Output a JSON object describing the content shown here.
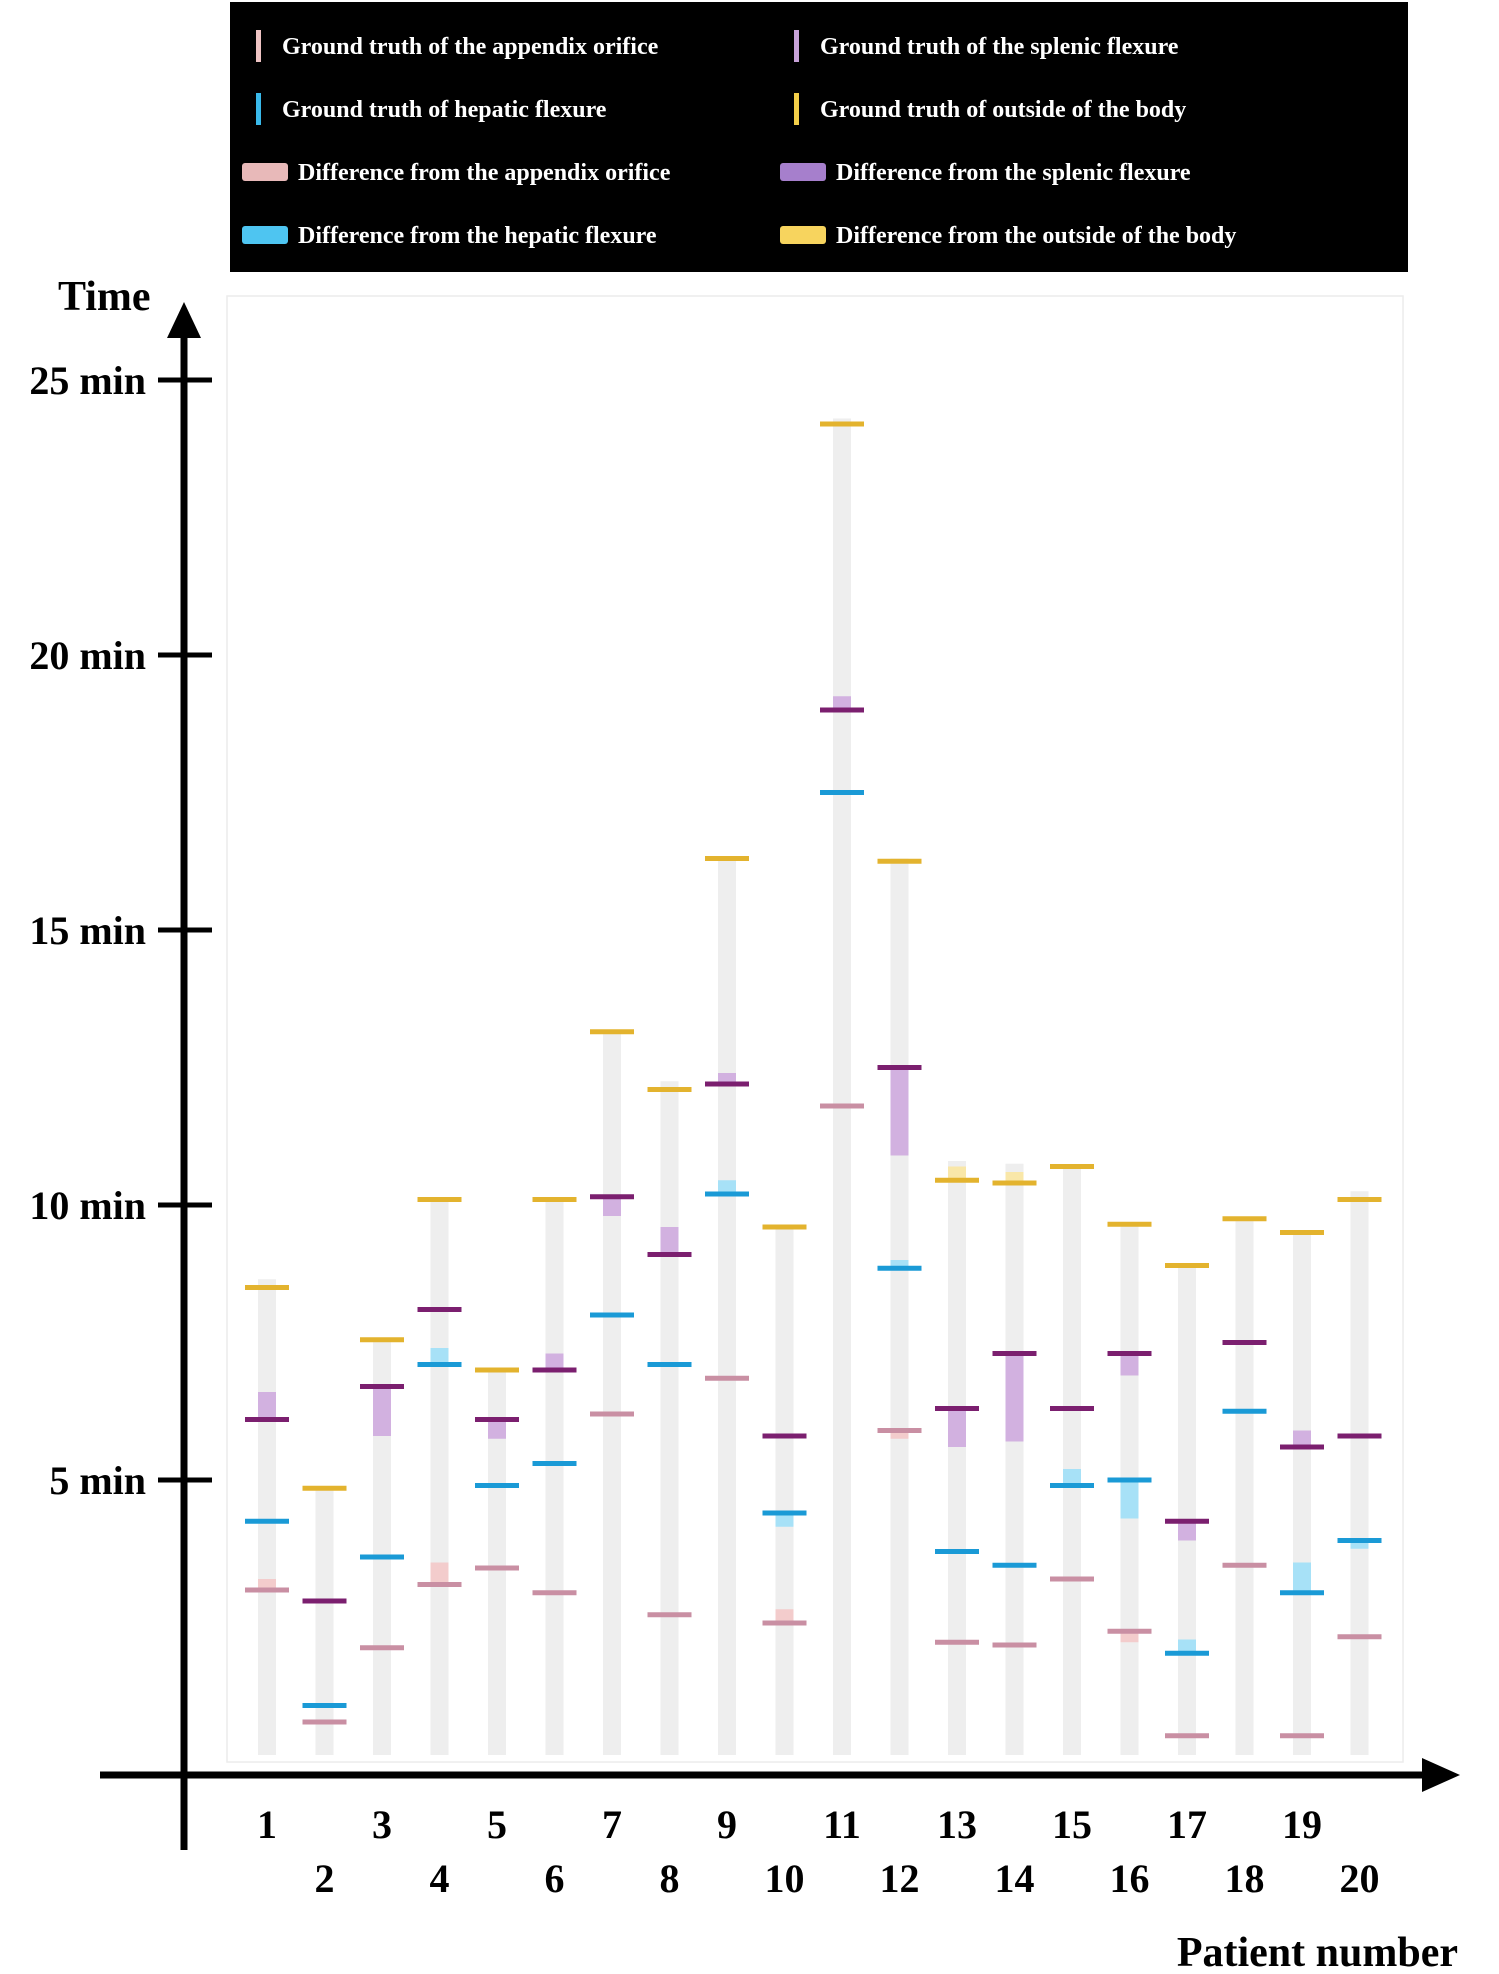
{
  "chart_data": {
    "type": "bar",
    "ylabel": "Time",
    "xlabel": "Patient number",
    "y_tick_labels": [
      "5 min",
      "10 min",
      "15 min",
      "20 min",
      "25 min"
    ],
    "y_ticks": [
      5,
      10,
      15,
      20,
      25
    ],
    "ylim": [
      0,
      26.5
    ],
    "legend": {
      "position": "top",
      "entries": [
        {
          "key": "gt_appendix",
          "label": "Ground truth of the appendix orifice",
          "color": "#eec4c4",
          "style": "thin"
        },
        {
          "key": "gt_splenic",
          "label": "Ground truth of the splenic flexure",
          "color": "#c7a2d8",
          "style": "thin"
        },
        {
          "key": "gt_hepatic",
          "label": "Ground truth of hepatic flexure",
          "color": "#39b9ea",
          "style": "thin"
        },
        {
          "key": "gt_outside",
          "label": "Ground truth of outside of the body",
          "color": "#f3cf49",
          "style": "thin"
        },
        {
          "key": "diff_appendix",
          "label": "Difference from the appendix orifice",
          "color": "#e8b9b9",
          "style": "thick"
        },
        {
          "key": "diff_splenic",
          "label": "Difference from the splenic flexure",
          "color": "#a67fcc",
          "style": "thick"
        },
        {
          "key": "diff_hepatic",
          "label": "Difference from the hepatic flexure",
          "color": "#4ec5f1",
          "style": "thick"
        },
        {
          "key": "diff_outside",
          "label": "Difference from the outside of the body",
          "color": "#f7d45e",
          "style": "thick"
        }
      ]
    },
    "colors": {
      "appendix_marker": "#c98fa3",
      "appendix_diff": "#f3cccc",
      "splenic_marker": "#7b1f6f",
      "splenic_diff": "#d2b1e0",
      "hepatic_marker": "#1a9ad6",
      "hepatic_diff": "#a7e1f7",
      "outside_marker": "#e3b32e",
      "outside_diff": "#f9e7a8",
      "bar": "#eeeeee"
    },
    "categories": [
      "1",
      "2",
      "3",
      "4",
      "5",
      "6",
      "7",
      "8",
      "9",
      "10",
      "11",
      "12",
      "13",
      "14",
      "15",
      "16",
      "17",
      "18",
      "19",
      "20"
    ],
    "patients": [
      {
        "patient": "1",
        "total": 8.65,
        "appendix": 3.0,
        "appendix_pred": 3.2,
        "hepatic": 4.25,
        "hepatic_pred": 4.25,
        "splenic": 6.1,
        "splenic_pred": 6.6,
        "outside": 8.5,
        "outside_pred": 8.5
      },
      {
        "patient": "2",
        "total": 4.85,
        "appendix": 0.6,
        "appendix_pred": 0.6,
        "hepatic": 0.9,
        "hepatic_pred": 0.9,
        "splenic": 2.8,
        "splenic_pred": 2.8,
        "outside": 4.85,
        "outside_pred": 4.85
      },
      {
        "patient": "3",
        "total": 7.55,
        "appendix": 1.95,
        "appendix_pred": 1.95,
        "hepatic": 3.6,
        "hepatic_pred": 3.6,
        "splenic": 6.7,
        "splenic_pred": 5.8,
        "outside": 7.55,
        "outside_pred": 7.55
      },
      {
        "patient": "4",
        "total": 10.1,
        "appendix": 3.1,
        "appendix_pred": 3.5,
        "hepatic": 7.1,
        "hepatic_pred": 7.4,
        "splenic": 8.1,
        "splenic_pred": 8.1,
        "outside": 10.1,
        "outside_pred": 10.1
      },
      {
        "patient": "5",
        "total": 7.0,
        "appendix": 3.4,
        "appendix_pred": 3.4,
        "hepatic": 4.9,
        "hepatic_pred": 4.9,
        "splenic": 6.1,
        "splenic_pred": 5.75,
        "outside": 7.0,
        "outside_pred": 7.0
      },
      {
        "patient": "6",
        "total": 10.1,
        "appendix": 2.95,
        "appendix_pred": 2.95,
        "hepatic": 5.3,
        "hepatic_pred": 5.3,
        "splenic": 7.0,
        "splenic_pred": 7.3,
        "outside": 10.1,
        "outside_pred": 10.1
      },
      {
        "patient": "7",
        "total": 13.15,
        "appendix": 6.2,
        "appendix_pred": 6.2,
        "hepatic": 8.0,
        "hepatic_pred": 8.0,
        "splenic": 10.15,
        "splenic_pred": 9.8,
        "outside": 13.15,
        "outside_pred": 13.15
      },
      {
        "patient": "8",
        "total": 12.25,
        "appendix": 2.55,
        "appendix_pred": 2.55,
        "hepatic": 7.1,
        "hepatic_pred": 7.1,
        "splenic": 9.1,
        "splenic_pred": 9.6,
        "outside": 12.1,
        "outside_pred": 12.1
      },
      {
        "patient": "9",
        "total": 16.3,
        "appendix": 6.85,
        "appendix_pred": 6.85,
        "hepatic": 10.2,
        "hepatic_pred": 10.45,
        "splenic": 12.2,
        "splenic_pred": 12.4,
        "outside": 16.3,
        "outside_pred": 16.3
      },
      {
        "patient": "10",
        "total": 9.6,
        "appendix": 2.4,
        "appendix_pred": 2.65,
        "hepatic": 4.4,
        "hepatic_pred": 4.15,
        "splenic": 5.8,
        "splenic_pred": 5.8,
        "outside": 9.6,
        "outside_pred": 9.6
      },
      {
        "patient": "11",
        "total": 24.3,
        "appendix": 11.8,
        "appendix_pred": 11.8,
        "hepatic": 17.5,
        "hepatic_pred": 17.5,
        "splenic": 19.0,
        "splenic_pred": 19.25,
        "outside": 24.2,
        "outside_pred": 24.2
      },
      {
        "patient": "12",
        "total": 16.3,
        "appendix": 5.9,
        "appendix_pred": 5.75,
        "hepatic": 8.85,
        "hepatic_pred": 9.0,
        "splenic": 12.5,
        "splenic_pred": 10.9,
        "outside": 16.25,
        "outside_pred": 16.25
      },
      {
        "patient": "13",
        "total": 10.8,
        "appendix": 2.05,
        "appendix_pred": 2.05,
        "hepatic": 3.7,
        "hepatic_pred": 3.7,
        "splenic": 6.3,
        "splenic_pred": 5.6,
        "outside": 10.45,
        "outside_pred": 10.7
      },
      {
        "patient": "14",
        "total": 10.75,
        "appendix": 2.0,
        "appendix_pred": 2.0,
        "hepatic": 3.45,
        "hepatic_pred": 3.45,
        "splenic": 7.3,
        "splenic_pred": 5.7,
        "outside": 10.4,
        "outside_pred": 10.6
      },
      {
        "patient": "15",
        "total": 10.7,
        "appendix": 3.2,
        "appendix_pred": 3.2,
        "hepatic": 4.9,
        "hepatic_pred": 5.2,
        "splenic": 6.3,
        "splenic_pred": 6.3,
        "outside": 10.7,
        "outside_pred": 10.7
      },
      {
        "patient": "16",
        "total": 9.65,
        "appendix": 2.25,
        "appendix_pred": 2.05,
        "hepatic": 5.0,
        "hepatic_pred": 4.3,
        "splenic": 7.3,
        "splenic_pred": 6.9,
        "outside": 9.65,
        "outside_pred": 9.65
      },
      {
        "patient": "17",
        "total": 8.9,
        "appendix": 0.35,
        "appendix_pred": 0.35,
        "hepatic": 1.85,
        "hepatic_pred": 2.1,
        "splenic": 4.25,
        "splenic_pred": 3.9,
        "outside": 8.9,
        "outside_pred": 8.9
      },
      {
        "patient": "18",
        "total": 9.75,
        "appendix": 3.45,
        "appendix_pred": 3.45,
        "hepatic": 6.25,
        "hepatic_pred": 6.25,
        "splenic": 7.5,
        "splenic_pred": 7.5,
        "outside": 9.75,
        "outside_pred": 9.75
      },
      {
        "patient": "19",
        "total": 9.5,
        "appendix": 0.35,
        "appendix_pred": 0.35,
        "hepatic": 2.95,
        "hepatic_pred": 3.5,
        "splenic": 5.6,
        "splenic_pred": 5.9,
        "outside": 9.5,
        "outside_pred": 9.5
      },
      {
        "patient": "20",
        "total": 10.25,
        "appendix": 2.15,
        "appendix_pred": 2.15,
        "hepatic": 3.9,
        "hepatic_pred": 3.75,
        "splenic": 5.8,
        "splenic_pred": 5.8,
        "outside": 10.1,
        "outside_pred": 10.1
      }
    ]
  }
}
